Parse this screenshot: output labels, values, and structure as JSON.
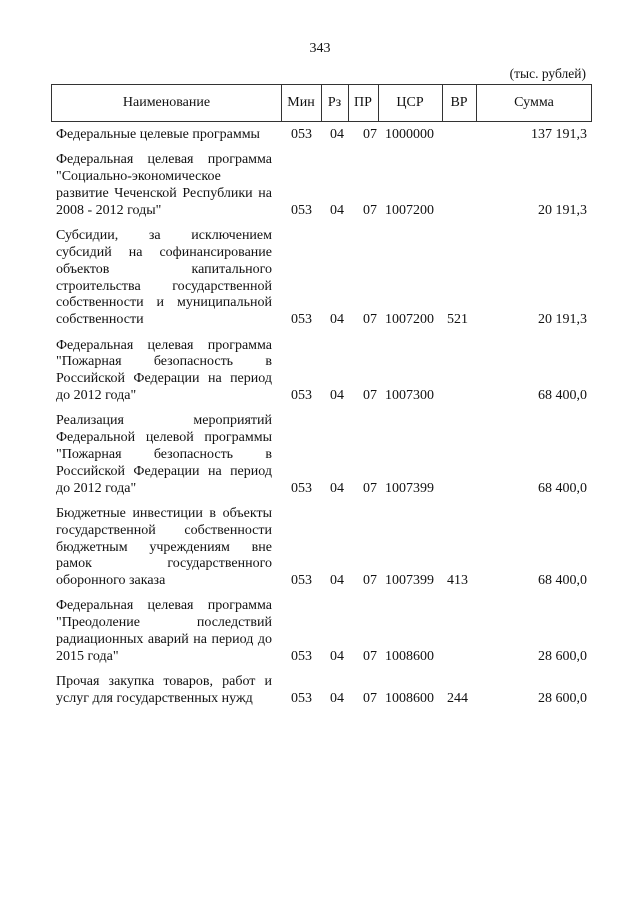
{
  "page_number": "343",
  "units": "(тыс. рублей)",
  "table": {
    "headers": [
      "Наименование",
      "Мин",
      "Рз",
      "ПР",
      "ЦСР",
      "ВР",
      "Сумма"
    ],
    "rows": [
      {
        "name": "Федеральные целевые программы",
        "min": "053",
        "rz": "04",
        "pr": "07",
        "csr": "1000000",
        "vr": "",
        "sum": "137 191,3"
      },
      {
        "name": "Федеральная целевая программа \"Социально-экономическое развитие Чеченской Республики на 2008 - 2012 годы\"",
        "min": "053",
        "rz": "04",
        "pr": "07",
        "csr": "1007200",
        "vr": "",
        "sum": "20 191,3"
      },
      {
        "name": "Субсидии, за исключением субсидий на софинансирование объектов капитального строительства государственной собственности и муниципальной собственности",
        "min": "053",
        "rz": "04",
        "pr": "07",
        "csr": "1007200",
        "vr": "521",
        "sum": "20 191,3"
      },
      {
        "name": "Федеральная целевая программа \"Пожарная безопасность в Российской Федерации на период до 2012 года\"",
        "min": "053",
        "rz": "04",
        "pr": "07",
        "csr": "1007300",
        "vr": "",
        "sum": "68 400,0"
      },
      {
        "name": "Реализация мероприятий Федеральной целевой программы \"Пожарная безопасность в Российской Федерации на период до 2012 года\"",
        "min": "053",
        "rz": "04",
        "pr": "07",
        "csr": "1007399",
        "vr": "",
        "sum": "68 400,0"
      },
      {
        "name": "Бюджетные инвестиции в объекты государственной собственности бюджетным учреждениям вне рамок государственного оборонного заказа",
        "min": "053",
        "rz": "04",
        "pr": "07",
        "csr": "1007399",
        "vr": "413",
        "sum": "68 400,0"
      },
      {
        "name": "Федеральная целевая программа \"Преодоление последствий радиационных аварий на период до 2015 года\"",
        "min": "053",
        "rz": "04",
        "pr": "07",
        "csr": "1008600",
        "vr": "",
        "sum": "28 600,0"
      },
      {
        "name": "Прочая закупка товаров, работ и услуг для государственных нужд",
        "min": "053",
        "rz": "04",
        "pr": "07",
        "csr": "1008600",
        "vr": "244",
        "sum": "28 600,0"
      }
    ]
  }
}
